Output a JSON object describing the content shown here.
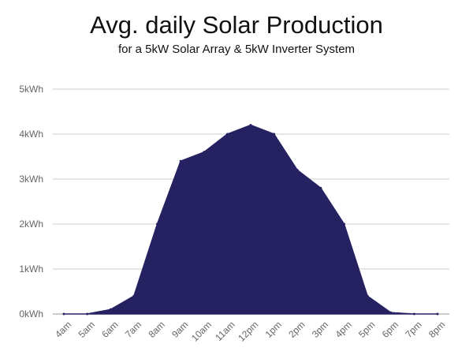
{
  "chart_data": {
    "type": "area",
    "title": "Avg. daily Solar Production",
    "subtitle": "for a 5kW Solar Array & 5kW Inverter System",
    "xlabel": "",
    "ylabel": "",
    "categories": [
      "4am",
      "5am",
      "6am",
      "7am",
      "8am",
      "9am",
      "10am",
      "11am",
      "12pm",
      "1pm",
      "2pm",
      "3pm",
      "4pm",
      "5pm",
      "6pm",
      "7pm",
      "8pm"
    ],
    "values": [
      0,
      0,
      0.1,
      0.4,
      2.0,
      3.4,
      3.6,
      4.0,
      4.2,
      4.0,
      3.2,
      2.8,
      2.0,
      0.4,
      0.03,
      0.0,
      0.0
    ],
    "y_ticks": [
      {
        "value": 0,
        "label": "0kWh"
      },
      {
        "value": 1,
        "label": "1kWh"
      },
      {
        "value": 2,
        "label": "2kWh"
      },
      {
        "value": 3,
        "label": "3kWh"
      },
      {
        "value": 4,
        "label": "4kWh"
      },
      {
        "value": 5,
        "label": "5kWh"
      }
    ],
    "ylim": [
      0,
      5
    ],
    "grid": true,
    "legend": "none",
    "fill_color": "#262262"
  }
}
